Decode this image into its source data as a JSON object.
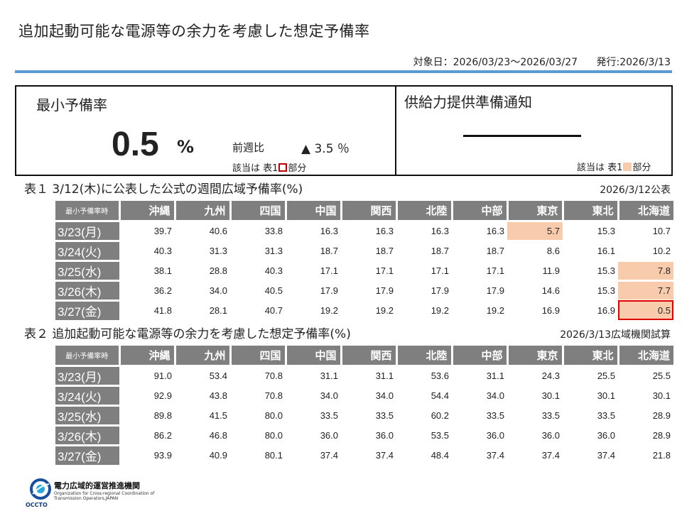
{
  "title": "追加起動可能な電源等の余力を考慮した想定予備率",
  "meta": {
    "target_period": "対象日：2026/03/23～2026/03/27",
    "issued": "発行:2026/3/13"
  },
  "summary": {
    "min_reserve_heading": "最小予備率",
    "min_reserve_value": "0.5",
    "min_reserve_unit": "%",
    "wow_label": "前週比",
    "wow_value": "▲ 3.5 ％",
    "note_prefix": "該当は 表1",
    "note_suffix": "部分",
    "notice_heading": "供給力提供準備通知",
    "notice_note_prefix": "該当は 表1",
    "notice_note_suffix": "部分"
  },
  "colors": {
    "blue_rule": "#5b9bd5",
    "header_gray": "#7f7f7f",
    "highlight_pink": "#f8cbad",
    "highlight_red": "#e00000"
  },
  "table1": {
    "caption": "表１ 3/12(木)に公表した公式の週間広域予備率(%)",
    "date_note": "2026/3/12公表",
    "corner": "最小予備率時",
    "areas": [
      "沖縄",
      "九州",
      "四国",
      "中国",
      "関西",
      "北陸",
      "中部",
      "東京",
      "東北",
      "北海道"
    ],
    "rows": [
      {
        "date": "3/23(月)",
        "values": [
          "39.7",
          "40.6",
          "33.8",
          "16.3",
          "16.3",
          "16.3",
          "16.3",
          "5.7",
          "15.3",
          "10.7"
        ]
      },
      {
        "date": "3/24(火)",
        "values": [
          "40.3",
          "31.3",
          "31.3",
          "18.7",
          "18.7",
          "18.7",
          "18.7",
          "8.6",
          "16.1",
          "10.2"
        ]
      },
      {
        "date": "3/25(水)",
        "values": [
          "38.1",
          "28.8",
          "40.3",
          "17.1",
          "17.1",
          "17.1",
          "17.1",
          "11.9",
          "15.3",
          "7.8"
        ]
      },
      {
        "date": "3/26(木)",
        "values": [
          "36.2",
          "34.0",
          "40.5",
          "17.9",
          "17.9",
          "17.9",
          "17.9",
          "14.6",
          "15.3",
          "7.7"
        ]
      },
      {
        "date": "3/27(金)",
        "values": [
          "41.8",
          "28.1",
          "40.7",
          "19.2",
          "19.2",
          "19.2",
          "19.2",
          "16.9",
          "16.9",
          "0.5"
        ]
      }
    ]
  },
  "table2": {
    "caption": "表２ 追加起動可能な電源等の余力を考慮した想定予備率(%)",
    "date_note": "2026/3/13広域機関試算",
    "corner": "最小予備率時",
    "areas": [
      "沖縄",
      "九州",
      "四国",
      "中国",
      "関西",
      "北陸",
      "中部",
      "東京",
      "東北",
      "北海道"
    ],
    "rows": [
      {
        "date": "3/23(月)",
        "values": [
          "91.0",
          "53.4",
          "70.8",
          "31.1",
          "31.1",
          "53.6",
          "31.1",
          "24.3",
          "25.5",
          "25.5"
        ]
      },
      {
        "date": "3/24(火)",
        "values": [
          "92.9",
          "43.8",
          "70.8",
          "34.0",
          "34.0",
          "54.4",
          "34.0",
          "30.1",
          "30.1",
          "30.1"
        ]
      },
      {
        "date": "3/25(水)",
        "values": [
          "89.8",
          "41.5",
          "80.0",
          "33.5",
          "33.5",
          "60.2",
          "33.5",
          "33.5",
          "33.5",
          "28.9"
        ]
      },
      {
        "date": "3/26(木)",
        "values": [
          "86.2",
          "46.8",
          "80.0",
          "36.0",
          "36.0",
          "53.5",
          "36.0",
          "36.0",
          "36.0",
          "28.9"
        ]
      },
      {
        "date": "3/27(金)",
        "values": [
          "93.9",
          "40.9",
          "80.1",
          "37.4",
          "37.4",
          "48.4",
          "37.4",
          "37.4",
          "37.4",
          "21.8"
        ]
      }
    ]
  },
  "logo": {
    "name_ja": "電力広域的運営推進機関",
    "name_en": "Organization for Cross-regional Coordination of Transmission Operators,JAPAN",
    "abbr": "OCCTO",
    "icon": "occto-logo-icon"
  }
}
